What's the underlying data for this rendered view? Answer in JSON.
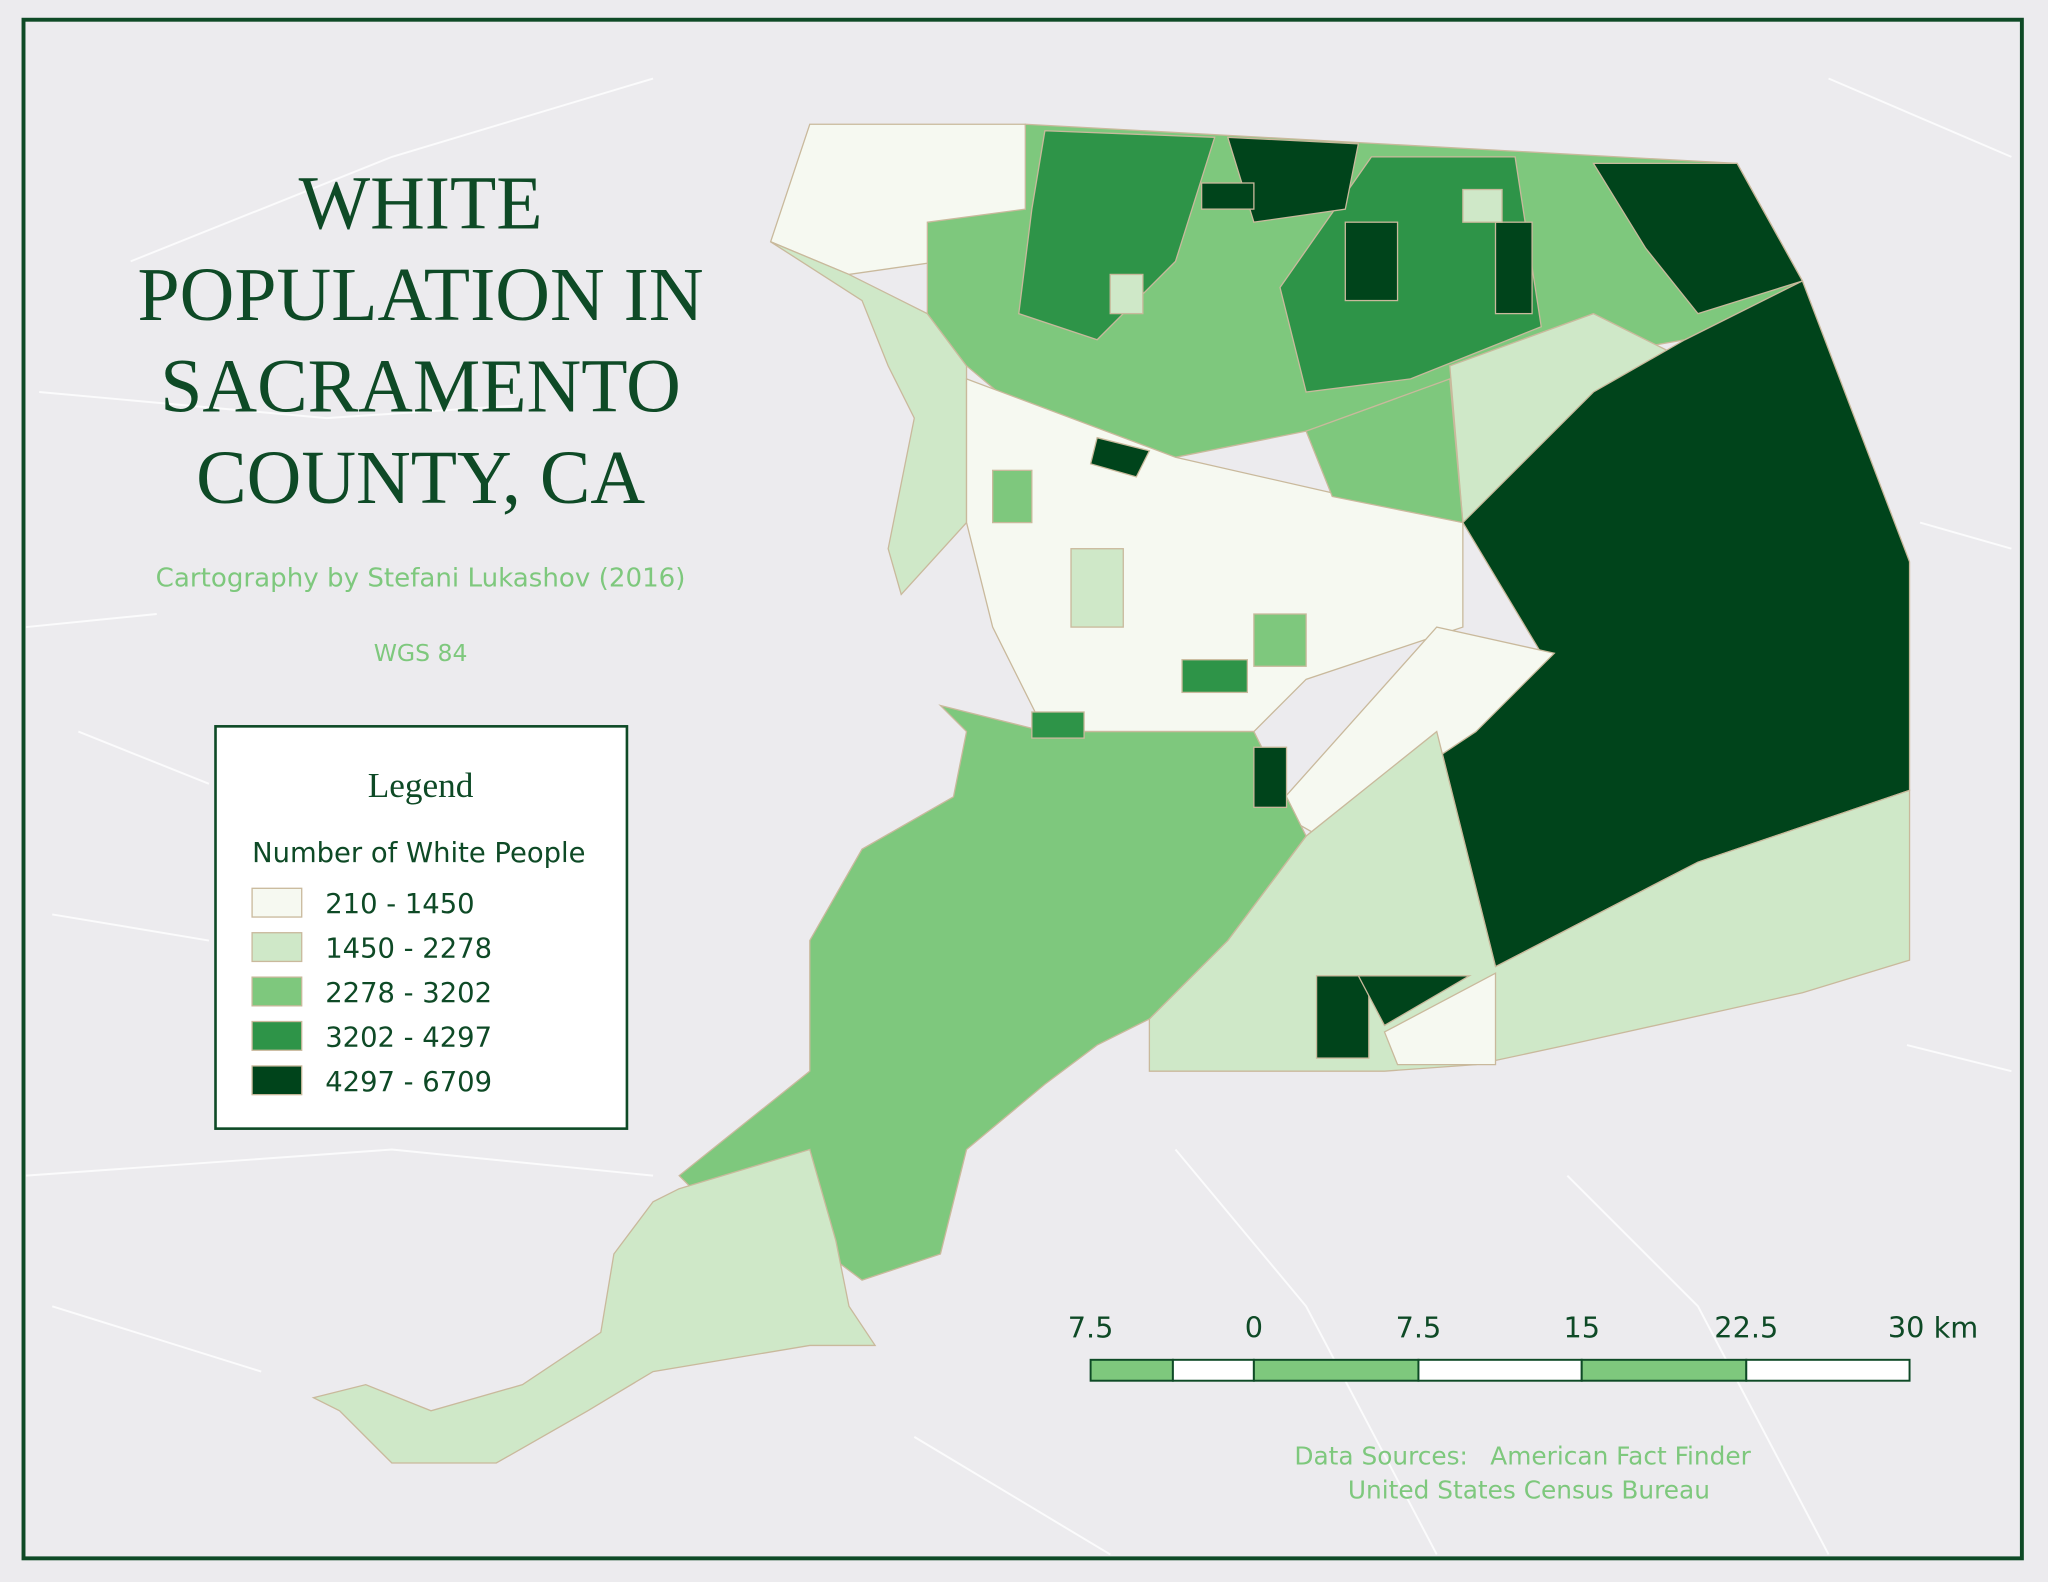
{
  "title_lines": [
    "WHITE",
    "POPULATION IN",
    "SACRAMENTO",
    "COUNTY, CA"
  ],
  "credit": "Cartography by Stefani Lukashov (2016)",
  "projection": "WGS 84",
  "legend": {
    "title": "Legend",
    "subtitle": "Number of White People",
    "classes": [
      {
        "label": "210 - 1450",
        "color": "#f6f9f1"
      },
      {
        "label": "1450 - 2278",
        "color": "#cfe8c8"
      },
      {
        "label": "2278 - 3202",
        "color": "#7ec87d"
      },
      {
        "label": "3202 - 4297",
        "color": "#2e9448"
      },
      {
        "label": "4297 - 6709",
        "color": "#00441b"
      }
    ]
  },
  "scale_bar": {
    "labels": [
      "7.5",
      "0",
      "7.5",
      "15",
      "22.5",
      "30 km"
    ]
  },
  "sources": {
    "label": "Data Sources:",
    "lines": [
      "American Fact Finder",
      "United States Census Bureau"
    ]
  }
}
